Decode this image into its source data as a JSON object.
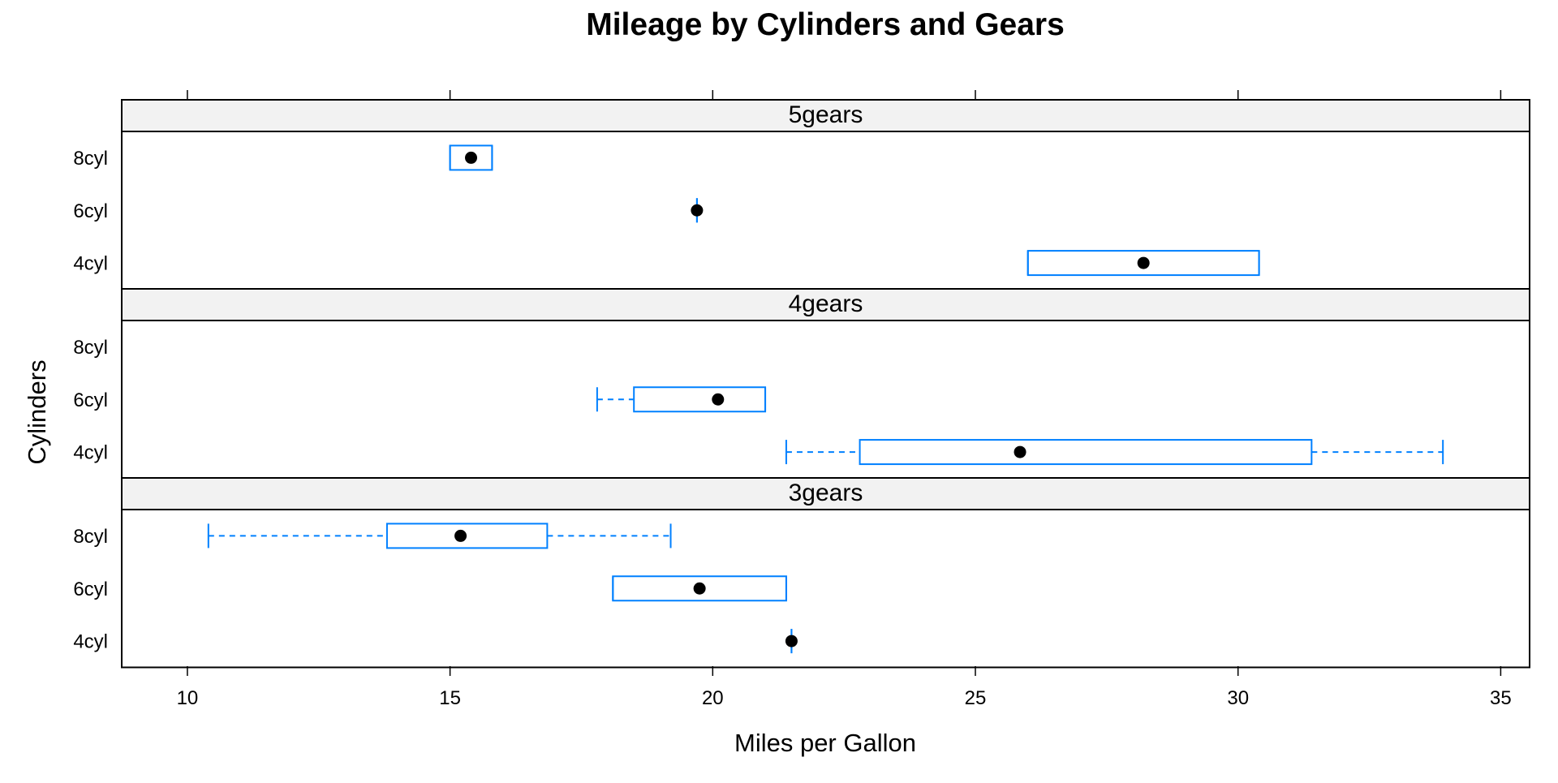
{
  "chart_data": {
    "type": "box",
    "title": "Mileage by Cylinders and Gears",
    "xlabel": "Miles per Gallon",
    "ylabel": "Cylinders",
    "xlim": [
      8.75,
      35.55
    ],
    "x_ticks": [
      10,
      15,
      20,
      25,
      30,
      35
    ],
    "categories": [
      "8cyl",
      "6cyl",
      "4cyl"
    ],
    "colors": {
      "box": "#0080ff",
      "median_dot": "#000000",
      "strip_bg": "#f2f2f2",
      "frame": "#000000"
    },
    "panels": [
      {
        "label": "5gears",
        "boxes": [
          {
            "category": "8cyl",
            "min": 15.0,
            "q1": 15.0,
            "median": 15.4,
            "q3": 15.8,
            "max": 15.8
          },
          {
            "category": "6cyl",
            "min": 19.7,
            "q1": 19.7,
            "median": 19.7,
            "q3": 19.7,
            "max": 19.7
          },
          {
            "category": "4cyl",
            "min": 26.0,
            "q1": 26.0,
            "median": 28.2,
            "q3": 30.4,
            "max": 30.4
          }
        ]
      },
      {
        "label": "4gears",
        "boxes": [
          {
            "category": "6cyl",
            "min": 17.8,
            "q1": 18.5,
            "median": 20.1,
            "q3": 21.0,
            "max": 21.0
          },
          {
            "category": "4cyl",
            "min": 21.4,
            "q1": 22.8,
            "median": 25.85,
            "q3": 31.4,
            "max": 33.9
          }
        ]
      },
      {
        "label": "3gears",
        "boxes": [
          {
            "category": "8cyl",
            "min": 10.4,
            "q1": 13.8,
            "median": 15.2,
            "q3": 16.85,
            "max": 19.2
          },
          {
            "category": "6cyl",
            "min": 18.1,
            "q1": 18.1,
            "median": 19.75,
            "q3": 21.4,
            "max": 21.4
          },
          {
            "category": "4cyl",
            "min": 21.5,
            "q1": 21.5,
            "median": 21.5,
            "q3": 21.5,
            "max": 21.5
          }
        ]
      }
    ]
  }
}
